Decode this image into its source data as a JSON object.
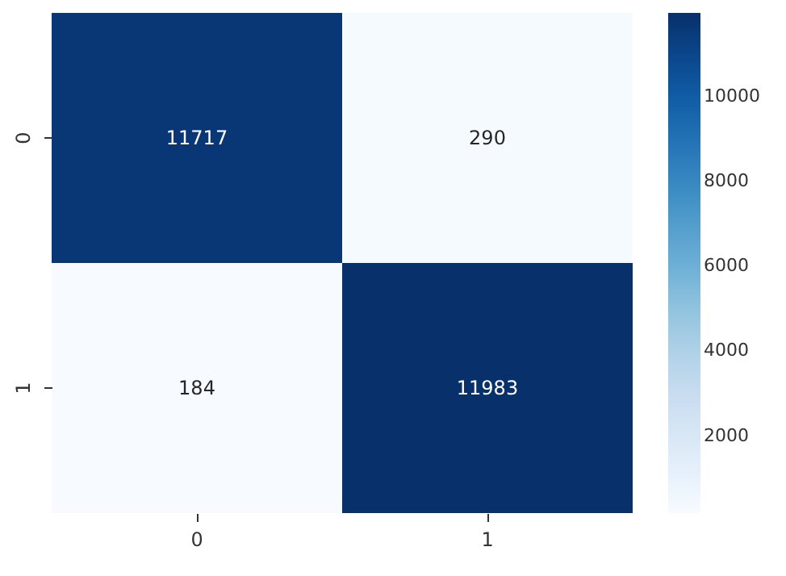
{
  "chart_data": {
    "type": "heatmap",
    "categories": [
      "0",
      "1"
    ],
    "y_categories": [
      "0",
      "1"
    ],
    "cells": [
      [
        11717,
        290
      ],
      [
        184,
        11983
      ]
    ],
    "clim": [
      184,
      11983
    ],
    "cticks": [
      2000,
      4000,
      6000,
      8000,
      10000
    ],
    "data_labels": true
  }
}
